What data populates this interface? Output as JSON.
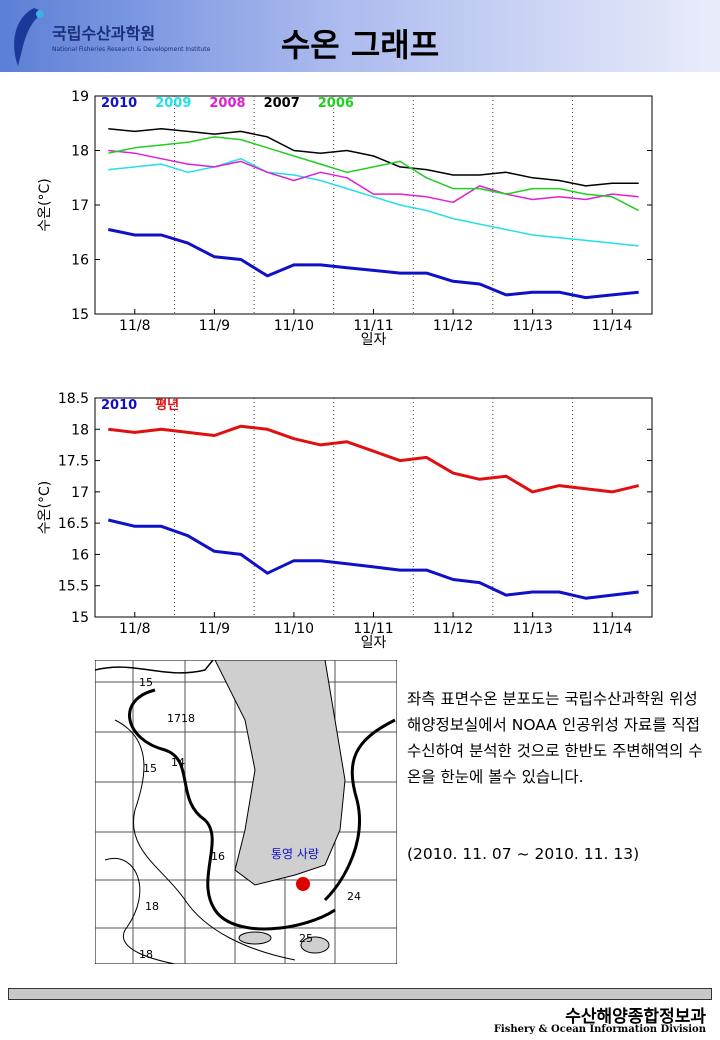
{
  "header": {
    "logo": "국립수산과학원",
    "logo_sub": "National Fisheries Research & Development Institute",
    "title": "수온 그래프"
  },
  "chart_data": [
    {
      "type": "line",
      "y_label": "수온(°C)",
      "x_label": "일자",
      "categories": [
        null,
        "11/8",
        null,
        null,
        "11/9",
        null,
        null,
        "11/10",
        null,
        null,
        "11/11",
        null,
        null,
        "11/12",
        null,
        null,
        "11/13",
        null,
        null,
        "11/14",
        null
      ],
      "ylim": [
        15,
        19
      ],
      "yticks": [
        15,
        16,
        17,
        18,
        19
      ],
      "series": [
        {
          "name": "2010",
          "color": "#1010c8",
          "values": [
            16.55,
            16.45,
            16.45,
            16.3,
            16.05,
            16.0,
            15.7,
            15.9,
            15.9,
            15.85,
            15.8,
            15.75,
            15.75,
            15.6,
            15.55,
            15.35,
            15.4,
            15.4,
            15.3,
            15.35,
            15.4
          ]
        },
        {
          "name": "2009",
          "color": "#22e0e8",
          "values": [
            17.65,
            17.7,
            17.75,
            17.6,
            17.7,
            17.85,
            17.6,
            17.55,
            17.45,
            17.3,
            17.15,
            17.0,
            16.9,
            16.75,
            16.65,
            16.55,
            16.45,
            16.4,
            16.35,
            16.3,
            16.25
          ]
        },
        {
          "name": "2008",
          "color": "#e020d0",
          "values": [
            18.0,
            17.95,
            17.85,
            17.75,
            17.7,
            17.8,
            17.6,
            17.45,
            17.6,
            17.5,
            17.2,
            17.2,
            17.15,
            17.05,
            17.35,
            17.2,
            17.1,
            17.15,
            17.1,
            17.2,
            17.15
          ]
        },
        {
          "name": "2007",
          "color": "#000000",
          "values": [
            18.4,
            18.35,
            18.4,
            18.35,
            18.3,
            18.35,
            18.25,
            18.0,
            17.95,
            18.0,
            17.9,
            17.7,
            17.65,
            17.55,
            17.55,
            17.6,
            17.5,
            17.45,
            17.35,
            17.4,
            17.4
          ]
        },
        {
          "name": "2006",
          "color": "#20d020",
          "values": [
            17.95,
            18.05,
            18.1,
            18.15,
            18.25,
            18.2,
            18.05,
            17.9,
            17.75,
            17.6,
            17.7,
            17.8,
            17.5,
            17.3,
            17.3,
            17.2,
            17.3,
            17.3,
            17.2,
            17.15,
            16.9
          ]
        }
      ]
    },
    {
      "type": "line",
      "y_label": "수온(°C)",
      "x_label": "일자",
      "categories": [
        null,
        "11/8",
        null,
        null,
        "11/9",
        null,
        null,
        "11/10",
        null,
        null,
        "11/11",
        null,
        null,
        "11/12",
        null,
        null,
        "11/13",
        null,
        null,
        "11/14",
        null
      ],
      "ylim": [
        15,
        18.5
      ],
      "yticks": [
        15,
        15.5,
        16,
        16.5,
        17,
        17.5,
        18,
        18.5
      ],
      "series": [
        {
          "name": "2010",
          "color": "#1010c8",
          "values": [
            16.55,
            16.45,
            16.45,
            16.3,
            16.05,
            16.0,
            15.7,
            15.9,
            15.9,
            15.85,
            15.8,
            15.75,
            15.75,
            15.6,
            15.55,
            15.35,
            15.4,
            15.4,
            15.3,
            15.35,
            15.4
          ]
        },
        {
          "name": "평년",
          "color": "#e01010",
          "values": [
            18.0,
            17.95,
            18.0,
            17.95,
            17.9,
            18.05,
            18.0,
            17.85,
            17.75,
            17.8,
            17.65,
            17.5,
            17.55,
            17.3,
            17.2,
            17.25,
            17.0,
            17.1,
            17.05,
            17.0,
            17.1
          ]
        }
      ]
    }
  ],
  "map": {
    "place": "통영 사량",
    "labels": [
      "15",
      "17",
      "18",
      "14",
      "15",
      "16",
      "18",
      "24",
      "25",
      "18"
    ]
  },
  "text": {
    "paragraph": "좌측 표면수온 분포도는 국립수산과학원 위성해양정보실에서 NOAA 인공위성 자료를 직접 수신하여 분석한 것으로 한반도 주변해역의 수온을 한눈에 볼수 있습니다.",
    "date": "(2010. 11. 07 ~ 2010. 11. 13)"
  },
  "footer": {
    "title": "수산해양종합정보과",
    "subtitle": "Fishery & Ocean Information Division"
  }
}
